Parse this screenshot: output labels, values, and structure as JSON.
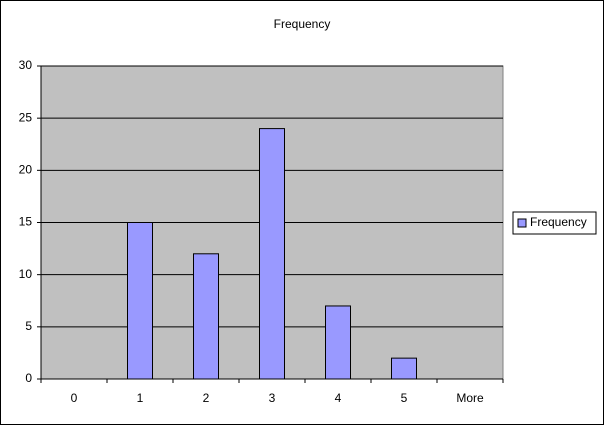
{
  "chart_data": {
    "type": "bar",
    "title": "Frequency",
    "categories": [
      "0",
      "1",
      "2",
      "3",
      "4",
      "5",
      "More"
    ],
    "series": [
      {
        "name": "Frequency",
        "color": "#9999ff",
        "values": [
          0,
          15,
          12,
          24,
          7,
          2,
          0
        ]
      }
    ],
    "ylim": [
      0,
      30
    ],
    "yticks": [
      0,
      5,
      10,
      15,
      20,
      25,
      30
    ],
    "grid": true,
    "plot_background": "#c0c0c0",
    "legend": "right"
  }
}
